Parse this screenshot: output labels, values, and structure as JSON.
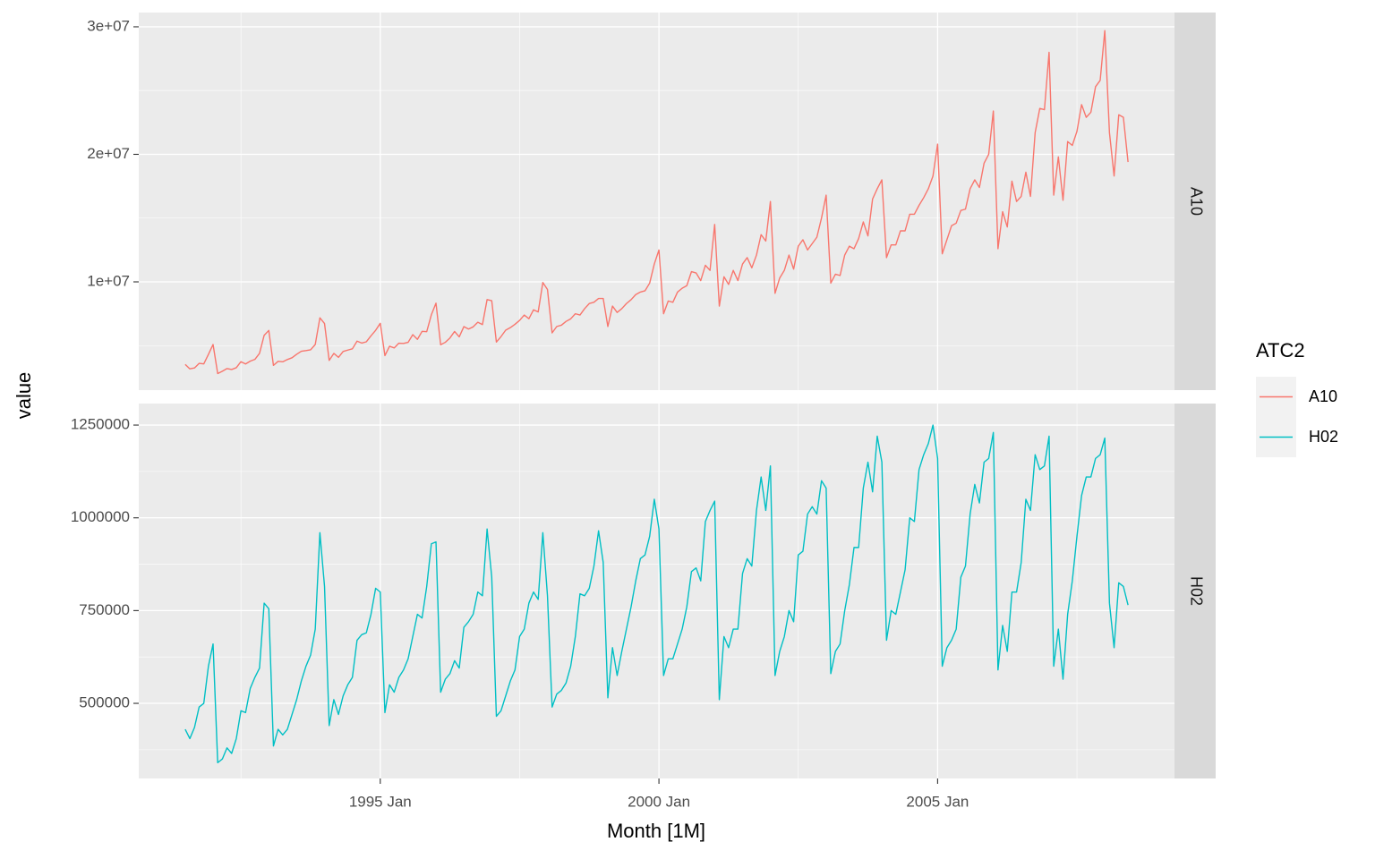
{
  "chart_data": {
    "type": "line",
    "xlabel": "Month [1M]",
    "ylabel": "value",
    "legend_title": "ATC2",
    "grid": true,
    "xlim": [
      "1990 Sep",
      "2009 Apr"
    ],
    "xticks": [
      "1995 Jan",
      "2000 Jan",
      "2005 Jan"
    ],
    "x": [
      "1991 Jul",
      "1991 Aug",
      "1991 Sep",
      "1991 Oct",
      "1991 Nov",
      "1991 Dec",
      "1992 Jan",
      "1992 Feb",
      "1992 Mar",
      "1992 Apr",
      "1992 May",
      "1992 Jun",
      "1992 Jul",
      "1992 Aug",
      "1992 Sep",
      "1992 Oct",
      "1992 Nov",
      "1992 Dec",
      "1993 Jan",
      "1993 Feb",
      "1993 Mar",
      "1993 Apr",
      "1993 May",
      "1993 Jun",
      "1993 Jul",
      "1993 Aug",
      "1993 Sep",
      "1993 Oct",
      "1993 Nov",
      "1993 Dec",
      "1994 Jan",
      "1994 Feb",
      "1994 Mar",
      "1994 Apr",
      "1994 May",
      "1994 Jun",
      "1994 Jul",
      "1994 Aug",
      "1994 Sep",
      "1994 Oct",
      "1994 Nov",
      "1994 Dec",
      "1995 Jan",
      "1995 Feb",
      "1995 Mar",
      "1995 Apr",
      "1995 May",
      "1995 Jun",
      "1995 Jul",
      "1995 Aug",
      "1995 Sep",
      "1995 Oct",
      "1995 Nov",
      "1995 Dec",
      "1996 Jan",
      "1996 Feb",
      "1996 Mar",
      "1996 Apr",
      "1996 May",
      "1996 Jun",
      "1996 Jul",
      "1996 Aug",
      "1996 Sep",
      "1996 Oct",
      "1996 Nov",
      "1996 Dec",
      "1997 Jan",
      "1997 Feb",
      "1997 Mar",
      "1997 Apr",
      "1997 May",
      "1997 Jun",
      "1997 Jul",
      "1997 Aug",
      "1997 Sep",
      "1997 Oct",
      "1997 Nov",
      "1997 Dec",
      "1998 Jan",
      "1998 Feb",
      "1998 Mar",
      "1998 Apr",
      "1998 May",
      "1998 Jun",
      "1998 Jul",
      "1998 Aug",
      "1998 Sep",
      "1998 Oct",
      "1998 Nov",
      "1998 Dec",
      "1999 Jan",
      "1999 Feb",
      "1999 Mar",
      "1999 Apr",
      "1999 May",
      "1999 Jun",
      "1999 Jul",
      "1999 Aug",
      "1999 Sep",
      "1999 Oct",
      "1999 Nov",
      "1999 Dec",
      "2000 Jan",
      "2000 Feb",
      "2000 Mar",
      "2000 Apr",
      "2000 May",
      "2000 Jun",
      "2000 Jul",
      "2000 Aug",
      "2000 Sep",
      "2000 Oct",
      "2000 Nov",
      "2000 Dec",
      "2001 Jan",
      "2001 Feb",
      "2001 Mar",
      "2001 Apr",
      "2001 May",
      "2001 Jun",
      "2001 Jul",
      "2001 Aug",
      "2001 Sep",
      "2001 Oct",
      "2001 Nov",
      "2001 Dec",
      "2002 Jan",
      "2002 Feb",
      "2002 Mar",
      "2002 Apr",
      "2002 May",
      "2002 Jun",
      "2002 Jul",
      "2002 Aug",
      "2002 Sep",
      "2002 Oct",
      "2002 Nov",
      "2002 Dec",
      "2003 Jan",
      "2003 Feb",
      "2003 Mar",
      "2003 Apr",
      "2003 May",
      "2003 Jun",
      "2003 Jul",
      "2003 Aug",
      "2003 Sep",
      "2003 Oct",
      "2003 Nov",
      "2003 Dec",
      "2004 Jan",
      "2004 Feb",
      "2004 Mar",
      "2004 Apr",
      "2004 May",
      "2004 Jun",
      "2004 Jul",
      "2004 Aug",
      "2004 Sep",
      "2004 Oct",
      "2004 Nov",
      "2004 Dec",
      "2005 Jan",
      "2005 Feb",
      "2005 Mar",
      "2005 Apr",
      "2005 May",
      "2005 Jun",
      "2005 Jul",
      "2005 Aug",
      "2005 Sep",
      "2005 Oct",
      "2005 Nov",
      "2005 Dec",
      "2006 Jan",
      "2006 Feb",
      "2006 Mar",
      "2006 Apr",
      "2006 May",
      "2006 Jun",
      "2006 Jul",
      "2006 Aug",
      "2006 Sep",
      "2006 Oct",
      "2006 Nov",
      "2006 Dec",
      "2007 Jan",
      "2007 Feb",
      "2007 Mar",
      "2007 Apr",
      "2007 May",
      "2007 Jun",
      "2007 Jul",
      "2007 Aug",
      "2007 Sep",
      "2007 Oct",
      "2007 Nov",
      "2007 Dec",
      "2008 Jan",
      "2008 Feb",
      "2008 Mar",
      "2008 Apr",
      "2008 May",
      "2008 Jun"
    ],
    "series": [
      {
        "name": "A10",
        "color": "#f8766d",
        "ylim": [
          1510000,
          31120000
        ],
        "yticks": [
          {
            "value": 10000000,
            "label": "1e+07"
          },
          {
            "value": 20000000,
            "label": "2e+07"
          },
          {
            "value": 30000000,
            "label": "3e+07"
          }
        ],
        "values": [
          3530000,
          3180000,
          3250000,
          3610000,
          3570000,
          4310000,
          5090000,
          2810000,
          2990000,
          3200000,
          3130000,
          3270000,
          3740000,
          3560000,
          3780000,
          3920000,
          4390000,
          5810000,
          6190000,
          3450000,
          3770000,
          3730000,
          3910000,
          4050000,
          4320000,
          4560000,
          4610000,
          4670000,
          5090000,
          7180000,
          6730000,
          3840000,
          4390000,
          4080000,
          4540000,
          4650000,
          4750000,
          5350000,
          5200000,
          5300000,
          5770000,
          6200000,
          6750000,
          4220000,
          4950000,
          4820000,
          5190000,
          5170000,
          5260000,
          5860000,
          5490000,
          6120000,
          6090000,
          7420000,
          8330000,
          5070000,
          5260000,
          5600000,
          6110000,
          5690000,
          6490000,
          6300000,
          6470000,
          6830000,
          6650000,
          8610000,
          8520000,
          5280000,
          5710000,
          6210000,
          6410000,
          6670000,
          6980000,
          7400000,
          7110000,
          7810000,
          7640000,
          9950000,
          9400000,
          6000000,
          6500000,
          6600000,
          6900000,
          7100000,
          7500000,
          7400000,
          7900000,
          8300000,
          8400000,
          8700000,
          8700000,
          6500000,
          8100000,
          7600000,
          7900000,
          8300000,
          8600000,
          9000000,
          9200000,
          9300000,
          9900000,
          11400000,
          12500000,
          7500000,
          8500000,
          8400000,
          9200000,
          9500000,
          9700000,
          10800000,
          10700000,
          10100000,
          11300000,
          10900000,
          14500000,
          8100000,
          10400000,
          9800000,
          10900000,
          10100000,
          11400000,
          11900000,
          11100000,
          12100000,
          13700000,
          13200000,
          16300000,
          9100000,
          10300000,
          10900000,
          12100000,
          11000000,
          12800000,
          13300000,
          12500000,
          13000000,
          13500000,
          15000000,
          16800000,
          9900000,
          10600000,
          10500000,
          12100000,
          12800000,
          12600000,
          13400000,
          14700000,
          13600000,
          16500000,
          17300000,
          18000000,
          11900000,
          12900000,
          12900000,
          14000000,
          14000000,
          15300000,
          15300000,
          16000000,
          16600000,
          17300000,
          18300000,
          20800000,
          12200000,
          13300000,
          14400000,
          14600000,
          15600000,
          15700000,
          17300000,
          18000000,
          17400000,
          19300000,
          20000000,
          23400000,
          12600000,
          15500000,
          14300000,
          17900000,
          16300000,
          16700000,
          18600000,
          16700000,
          21700000,
          23600000,
          23500000,
          28000000,
          16800000,
          19800000,
          16400000,
          21000000,
          20700000,
          21800000,
          23900000,
          22900000,
          23300000,
          25300000,
          25800000,
          29700000,
          21700000,
          18300000,
          23100000,
          22900000,
          19400000
        ]
      },
      {
        "name": "H02",
        "color": "#00bfc4",
        "ylim": [
          297500,
          1308000
        ],
        "yticks": [
          500000,
          750000,
          1000000,
          1250000
        ],
        "values": [
          430000,
          405000,
          435000,
          490000,
          500000,
          600000,
          660000,
          340000,
          350000,
          380000,
          365000,
          405000,
          480000,
          475000,
          540000,
          570000,
          595000,
          770000,
          755000,
          385000,
          430000,
          415000,
          430000,
          470000,
          510000,
          560000,
          600000,
          630000,
          700000,
          960000,
          815000,
          440000,
          510000,
          470000,
          520000,
          550000,
          570000,
          670000,
          685000,
          690000,
          740000,
          810000,
          800000,
          475000,
          550000,
          530000,
          570000,
          590000,
          620000,
          680000,
          740000,
          730000,
          815000,
          930000,
          935000,
          530000,
          565000,
          580000,
          615000,
          595000,
          705000,
          720000,
          740000,
          800000,
          790000,
          970000,
          840000,
          465000,
          480000,
          520000,
          560000,
          590000,
          680000,
          700000,
          770000,
          800000,
          780000,
          960000,
          790000,
          490000,
          525000,
          535000,
          555000,
          600000,
          680000,
          795000,
          790000,
          810000,
          870000,
          965000,
          880000,
          515000,
          650000,
          575000,
          640000,
          700000,
          760000,
          830000,
          890000,
          900000,
          950000,
          1050000,
          970000,
          575000,
          620000,
          620000,
          660000,
          700000,
          760000,
          855000,
          865000,
          830000,
          990000,
          1020000,
          1045000,
          510000,
          680000,
          650000,
          700000,
          700000,
          850000,
          890000,
          870000,
          1020000,
          1110000,
          1020000,
          1140000,
          575000,
          640000,
          680000,
          750000,
          720000,
          900000,
          910000,
          1010000,
          1030000,
          1010000,
          1100000,
          1080000,
          580000,
          640000,
          660000,
          750000,
          820000,
          920000,
          920000,
          1080000,
          1150000,
          1070000,
          1220000,
          1150000,
          670000,
          750000,
          740000,
          800000,
          860000,
          1000000,
          990000,
          1130000,
          1170000,
          1200000,
          1250000,
          1160000,
          600000,
          650000,
          670000,
          700000,
          840000,
          870000,
          1010000,
          1090000,
          1040000,
          1150000,
          1160000,
          1230000,
          590000,
          710000,
          640000,
          800000,
          800000,
          880000,
          1050000,
          1020000,
          1170000,
          1130000,
          1140000,
          1220000,
          600000,
          700000,
          565000,
          740000,
          830000,
          950000,
          1060000,
          1110000,
          1110000,
          1160000,
          1170000,
          1215000,
          770000,
          650000,
          825000,
          815000,
          765000
        ]
      }
    ]
  }
}
